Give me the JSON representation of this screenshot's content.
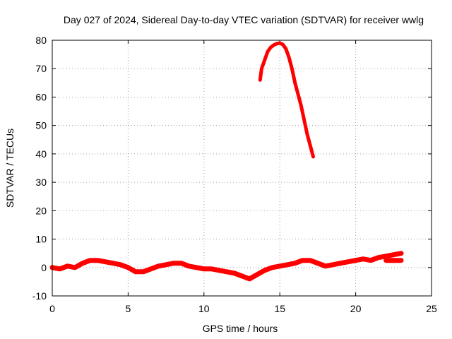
{
  "chart_data": {
    "type": "line",
    "title": "Day 027 of 2024, Sidereal Day-to-day VTEC variation (SDTVAR) for receiver wwlg",
    "xlabel": "GPS time / hours",
    "ylabel": "SDTVAR / TECUs",
    "xlim": [
      0,
      25
    ],
    "ylim": [
      -10,
      80
    ],
    "x_ticks": [
      "0",
      "5",
      "10",
      "15",
      "20",
      "25"
    ],
    "y_ticks": [
      "-10",
      "0",
      "10",
      "20",
      "30",
      "40",
      "50",
      "60",
      "70",
      "80"
    ],
    "grid": true,
    "legend": "none",
    "series_color": "#ff0000",
    "series": [
      {
        "x": [
          0,
          0.5,
          1,
          1.5,
          2,
          2.5,
          3,
          3.5,
          4,
          4.5,
          5,
          5.5,
          6,
          6.5,
          7,
          7.5,
          8,
          8.5,
          9,
          9.5,
          10,
          10.5,
          11,
          11.5,
          12,
          12.5,
          13,
          13.5,
          14,
          14.5,
          15,
          15.5,
          16,
          16.5,
          17,
          17.5,
          18,
          18.5,
          19,
          19.5,
          20,
          20.5,
          21,
          21.5,
          22,
          22.5,
          23
        ],
        "values": [
          0,
          -0.5,
          0.5,
          0,
          1.5,
          2.5,
          2.5,
          2,
          1.5,
          1,
          0,
          -1.5,
          -1.5,
          -0.5,
          0.5,
          1,
          1.5,
          1.5,
          0.5,
          0,
          -0.5,
          -0.5,
          -1,
          -1.5,
          -2,
          -3,
          -4,
          -2.5,
          -1,
          0,
          0.5,
          1,
          1.5,
          2.5,
          2.5,
          1.5,
          0.5,
          1,
          1.5,
          2,
          2.5,
          3,
          2.5,
          3.5,
          4,
          4.5,
          5
        ]
      },
      {
        "x": [
          22,
          22.5,
          23
        ],
        "values": [
          2.5,
          2.5,
          2.5
        ]
      },
      {
        "x": [
          13.7,
          13.8,
          14,
          14.2,
          14.4,
          14.6,
          14.8,
          15,
          15.2,
          15.4,
          15.6,
          15.8,
          16,
          16.2,
          16.4,
          16.6,
          16.8,
          17,
          17.2
        ],
        "values": [
          66,
          70,
          73,
          76,
          77.5,
          78.3,
          78.8,
          79,
          78.5,
          77,
          74,
          70,
          65,
          61,
          57,
          52,
          47,
          43,
          39
        ]
      }
    ]
  }
}
